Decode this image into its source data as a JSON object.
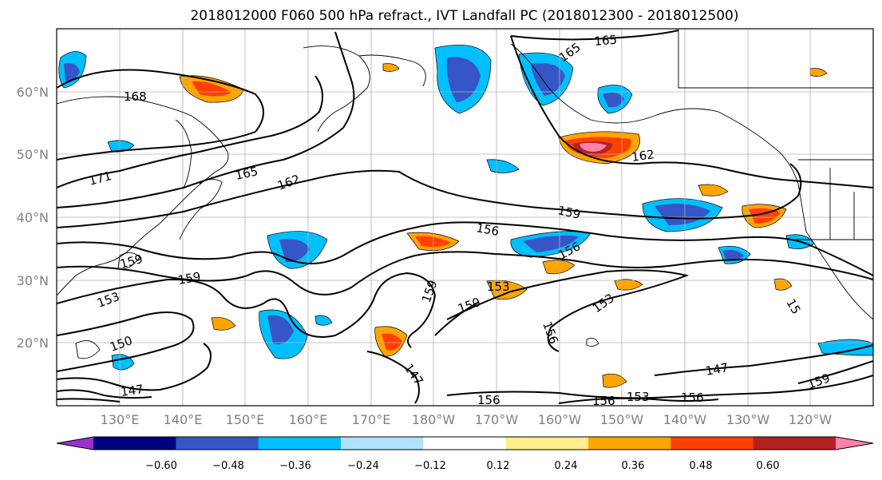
{
  "title": "2018012000 F060 500 hPa refract., IVT Landfall PC (2018012300 - 2018012500)",
  "map": {
    "lon_labels": [
      "130°E",
      "140°E",
      "150°E",
      "160°E",
      "170°E",
      "180°W",
      "170°W",
      "160°W",
      "150°W",
      "140°W",
      "130°W",
      "120°W"
    ],
    "lat_labels": [
      "60°N",
      "50°N",
      "40°N",
      "30°N",
      "20°N"
    ],
    "gridlines": true,
    "contour_labels": [
      "168",
      "171",
      "165",
      "162",
      "165",
      "165",
      "162",
      "159",
      "156",
      "156",
      "159",
      "153",
      "159",
      "150",
      "153",
      "156",
      "147",
      "150",
      "153",
      "147",
      "147",
      "156",
      "156",
      "153",
      "156",
      "159",
      "159",
      "15"
    ],
    "colorbar": {
      "tick_labels": [
        "−0.60",
        "−0.48",
        "−0.36",
        "−0.24",
        "−0.12",
        "0.12",
        "0.24",
        "0.36",
        "0.48",
        "0.60"
      ],
      "colors": [
        "#9932cc",
        "#000080",
        "#3656c8",
        "#00bfff",
        "#b0e2ff",
        "#ffffff",
        "#ffec8b",
        "#ffa500",
        "#ff4000",
        "#b22222",
        "#ff82ab"
      ]
    }
  }
}
